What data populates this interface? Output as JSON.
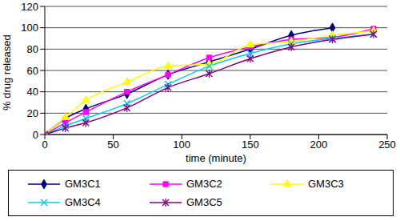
{
  "chart_data": {
    "type": "line",
    "x_label": "time (minute)",
    "y_label": "% drug released",
    "x": [
      0,
      15,
      30,
      60,
      90,
      120,
      150,
      180,
      210,
      240
    ],
    "series": [
      {
        "name": "GM3C1",
        "color": "#000080",
        "marker": "diamond",
        "values": [
          0,
          15,
          24,
          38,
          56,
          68,
          80,
          93,
          100,
          null
        ]
      },
      {
        "name": "GM3C2",
        "color": "#FF00FF",
        "marker": "square",
        "values": [
          0,
          11,
          21,
          40,
          56,
          72,
          82,
          89,
          91,
          99
        ]
      },
      {
        "name": "GM3C3",
        "color": "#FFFF00",
        "marker": "triangle",
        "values": [
          0,
          16,
          32,
          49,
          64,
          66,
          84,
          87,
          93,
          97
        ]
      },
      {
        "name": "GM3C4",
        "color": "#00CCFF",
        "marker": "x",
        "values": [
          0,
          8,
          15,
          29,
          47,
          64,
          76,
          85,
          90,
          94
        ]
      },
      {
        "name": "GM3C5",
        "color": "#800080",
        "marker": "star",
        "values": [
          0,
          6,
          11,
          25,
          44,
          57,
          71,
          82,
          89,
          94
        ]
      }
    ],
    "xlim": [
      0,
      250
    ],
    "xticks": [
      0,
      50,
      100,
      150,
      200,
      250
    ],
    "ylim": [
      0,
      120
    ],
    "yticks": [
      0,
      20,
      40,
      60,
      80,
      100,
      120
    ],
    "grid": true,
    "legend": "bottom"
  }
}
